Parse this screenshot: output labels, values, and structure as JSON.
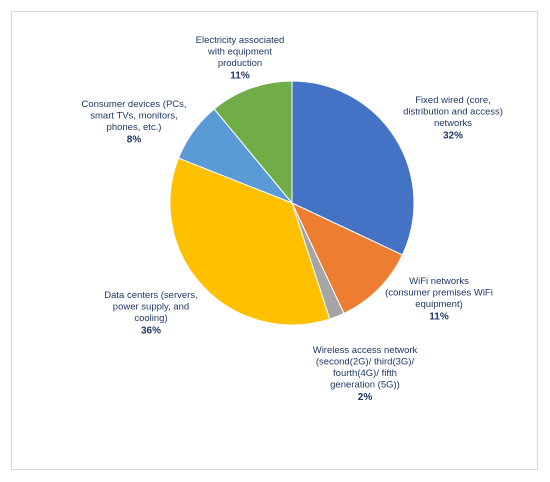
{
  "chart_data": {
    "type": "pie",
    "title": "",
    "slices": [
      {
        "label": [
          "Fixed wired (core,",
          "distribution and access)",
          "networks"
        ],
        "value": 32,
        "value_label": "32%",
        "color": "#4472c4"
      },
      {
        "label": [
          "WiFi networks",
          "(consumer premises WiFi",
          "equipment)"
        ],
        "value": 11,
        "value_label": "11%",
        "color": "#ed7d31"
      },
      {
        "label": [
          "Wireless access network",
          "(second(2G)/ third(3G)/",
          "fourth(4G)/ fifth",
          "generation (5G))"
        ],
        "value": 2,
        "value_label": "2%",
        "color": "#a5a5a5"
      },
      {
        "label": [
          "Data centers (servers,",
          "power supply, and",
          "cooling)"
        ],
        "value": 36,
        "value_label": "36%",
        "color": "#ffc000"
      },
      {
        "label": [
          "Consumer devices (PCs,",
          "smart TVs, monitors,",
          "phones, etc.)"
        ],
        "value": 8,
        "value_label": "8%",
        "color": "#5b9bd5"
      },
      {
        "label": [
          "Electricity associated",
          "with equipment",
          "production"
        ],
        "value": 11,
        "value_label": "11%",
        "color": "#70ad47"
      }
    ]
  }
}
